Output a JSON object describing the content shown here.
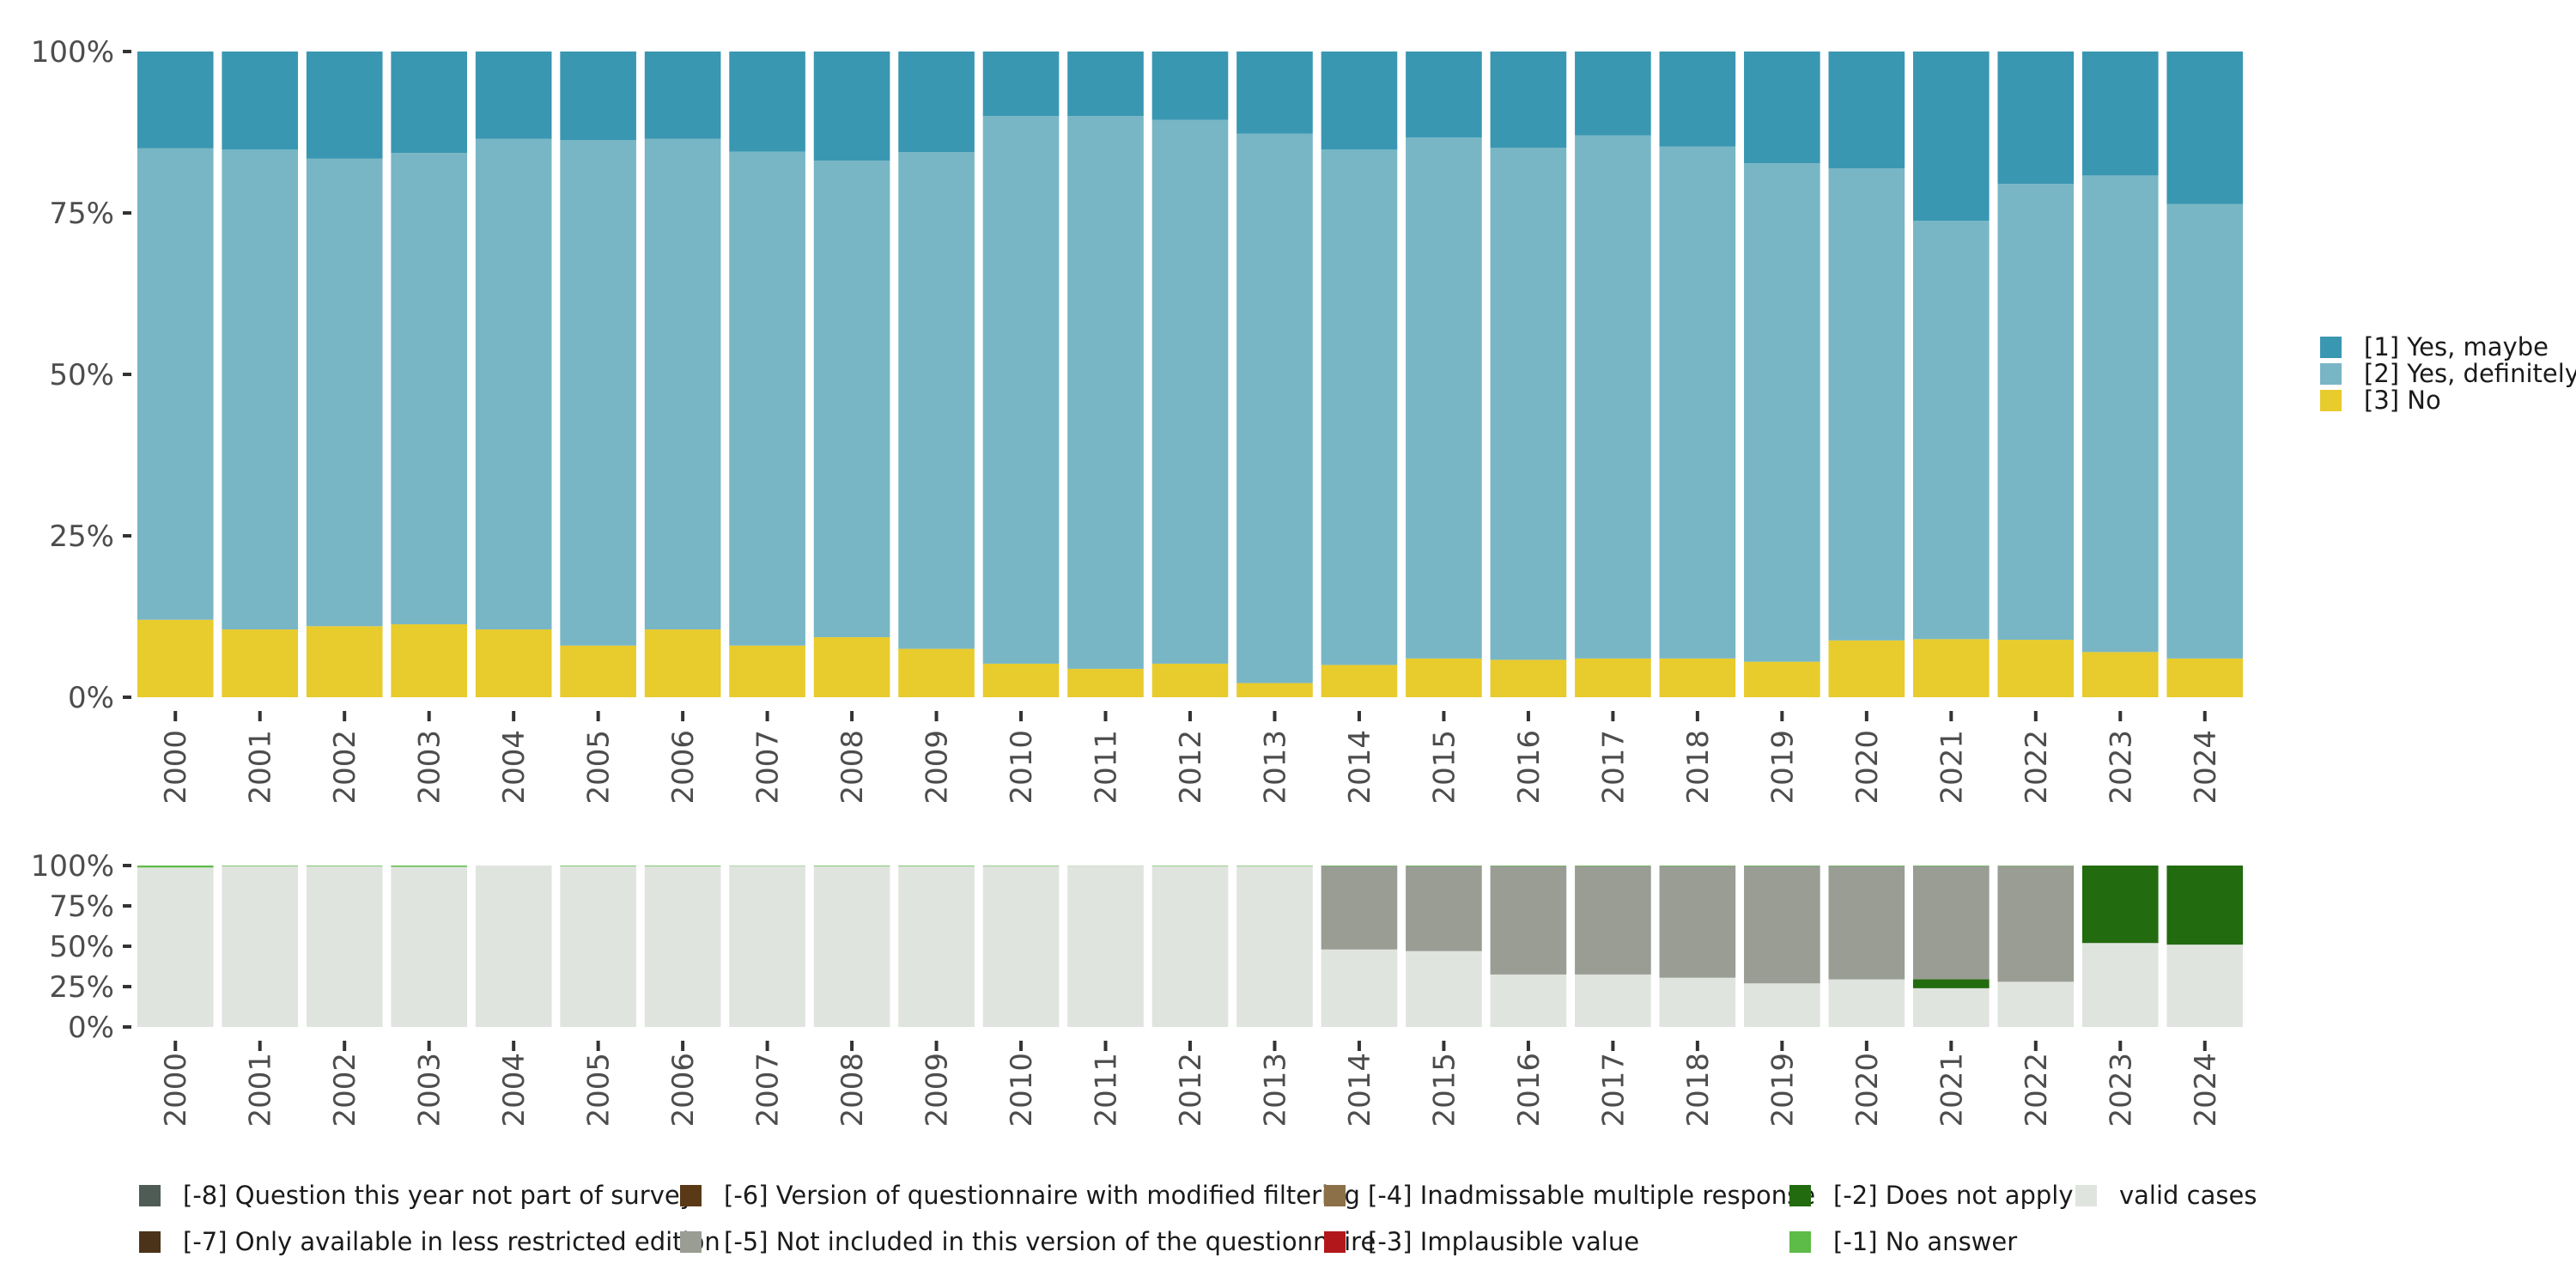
{
  "chart_data": [
    {
      "type": "bar",
      "stacked": true,
      "orientation": "vertical",
      "title": "",
      "xlabel": "",
      "ylabel": "",
      "ylim": [
        0,
        100
      ],
      "y_ticks": [
        "0%",
        "25%",
        "50%",
        "75%",
        "100%"
      ],
      "y_tick_values": [
        0,
        25,
        50,
        75,
        100
      ],
      "categories": [
        "2000",
        "2001",
        "2002",
        "2003",
        "2004",
        "2005",
        "2006",
        "2007",
        "2008",
        "2009",
        "2010",
        "2011",
        "2012",
        "2013",
        "2014",
        "2015",
        "2016",
        "2017",
        "2018",
        "2019",
        "2020",
        "2021",
        "2022",
        "2023",
        "2024"
      ],
      "legend_position": "right",
      "series": [
        {
          "name": "[3] No",
          "color": "#E8CB2D",
          "values": [
            12,
            10.5,
            11,
            11.3,
            10.5,
            8,
            10.5,
            8,
            9.3,
            7.5,
            5.2,
            4.4,
            5.2,
            2.2,
            5,
            6,
            5.8,
            6,
            6,
            5.5,
            8.8,
            9,
            8.9,
            7,
            6
          ]
        },
        {
          "name": "[2] Yes, definitely",
          "color": "#78B6C5",
          "values": [
            73,
            74.3,
            72.4,
            73,
            76,
            78.3,
            76,
            76.5,
            73.8,
            76.9,
            84.8,
            85.6,
            84.2,
            85.1,
            79.8,
            80.7,
            79.3,
            81,
            79.3,
            77.2,
            73.1,
            64.8,
            70.6,
            73.8,
            70.4
          ]
        },
        {
          "name": "[1] Yes, maybe",
          "color": "#3A97B1",
          "values": [
            15,
            15.2,
            16.6,
            15.7,
            13.5,
            13.7,
            13.5,
            15.5,
            16.9,
            15.6,
            10,
            10,
            10.6,
            12.7,
            15.2,
            13.3,
            14.9,
            13,
            14.7,
            17.3,
            18.1,
            26.2,
            20.5,
            19.2,
            23.6
          ]
        }
      ],
      "legend": [
        {
          "label": "[1] Yes, maybe",
          "color": "#3A97B1"
        },
        {
          "label": "[2] Yes, definitely",
          "color": "#78B6C5"
        },
        {
          "label": "[3] No",
          "color": "#E8CB2D"
        }
      ]
    },
    {
      "type": "bar",
      "stacked": true,
      "orientation": "vertical",
      "title": "",
      "xlabel": "",
      "ylabel": "",
      "ylim": [
        0,
        100
      ],
      "y_ticks": [
        "0%",
        "25%",
        "50%",
        "75%",
        "100%"
      ],
      "y_tick_values": [
        0,
        25,
        50,
        75,
        100
      ],
      "categories": [
        "2000",
        "2001",
        "2002",
        "2003",
        "2004",
        "2005",
        "2006",
        "2007",
        "2008",
        "2009",
        "2010",
        "2011",
        "2012",
        "2013",
        "2014",
        "2015",
        "2016",
        "2017",
        "2018",
        "2019",
        "2020",
        "2021",
        "2022",
        "2023",
        "2024"
      ],
      "legend_position": "bottom",
      "series": [
        {
          "name": "valid cases",
          "color": "#E0E4DF",
          "values": [
            98.8,
            99.6,
            99.6,
            99.2,
            100,
            99.6,
            99.6,
            99.8,
            99.6,
            99.6,
            99.7,
            99.9,
            99.7,
            99.7,
            48,
            47,
            32.5,
            32.5,
            30.5,
            27,
            29.5,
            24,
            28,
            52,
            51
          ]
        },
        {
          "name": "[-2] Does not apply",
          "color": "#226C0F",
          "values": [
            0,
            0,
            0,
            0,
            0,
            0,
            0,
            0,
            0,
            0,
            0,
            0,
            0,
            0,
            0,
            0,
            0,
            0,
            0,
            0,
            0,
            5.5,
            0,
            48,
            49
          ]
        },
        {
          "name": "[-5] Not included in this version of the questionnaire",
          "color": "#999D93",
          "values": [
            0,
            0,
            0,
            0,
            0,
            0,
            0,
            0,
            0,
            0,
            0,
            0,
            0,
            0,
            51.7,
            52.7,
            67.2,
            67.2,
            69.2,
            72.7,
            70.2,
            70.2,
            71.8,
            0,
            0
          ]
        },
        {
          "name": "[-1] No answer",
          "color": "#5DBB48",
          "values": [
            1.2,
            0.4,
            0.4,
            0.8,
            0,
            0.4,
            0.4,
            0.2,
            0.4,
            0.4,
            0.3,
            0.1,
            0.3,
            0.3,
            0.3,
            0.3,
            0.3,
            0.3,
            0.3,
            0.3,
            0.3,
            0.3,
            0.2,
            0,
            0
          ]
        }
      ],
      "legend": [
        {
          "label": "[-8] Question this year not part of survey",
          "color": "#4E5C55"
        },
        {
          "label": "[-7] Only available in less restricted edition",
          "color": "#4B3319"
        },
        {
          "label": "[-6] Version of questionnaire with modified filtering",
          "color": "#5A3A16"
        },
        {
          "label": "[-5] Not included in this version of the questionnaire",
          "color": "#999D93"
        },
        {
          "label": "[-4] Inadmissable multiple response",
          "color": "#8C7048"
        },
        {
          "label": "[-3] Implausible value",
          "color": "#B2181B"
        },
        {
          "label": "[-2] Does not apply",
          "color": "#226C0F"
        },
        {
          "label": "[-1] No answer",
          "color": "#5DBB48"
        },
        {
          "label": "valid cases",
          "color": "#E0E4DF"
        }
      ]
    }
  ]
}
